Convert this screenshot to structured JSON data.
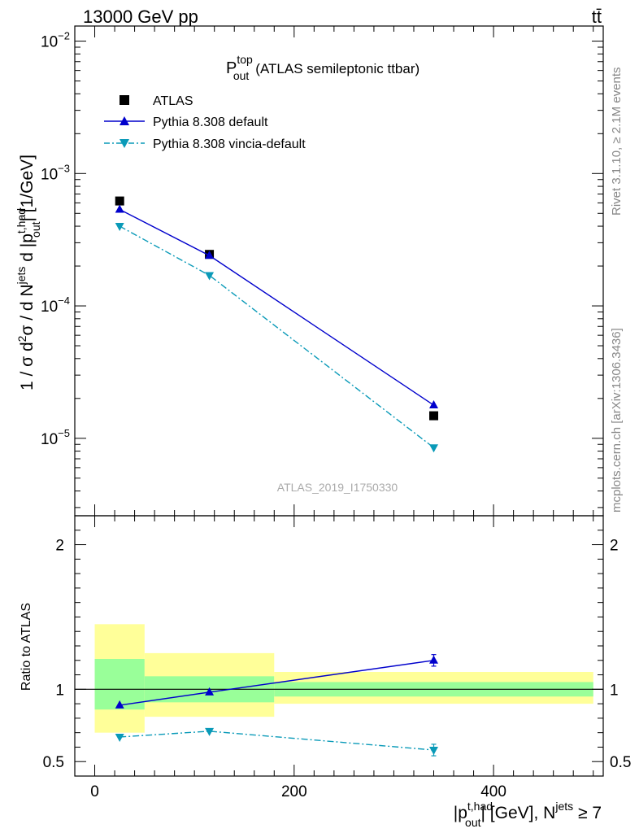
{
  "header": {
    "energy": "13000 GeV pp",
    "process": "tt̄"
  },
  "side_labels": {
    "rivet": "Rivet 3.1.10, ≥ 2.1M events",
    "source": "mcplots.cern.ch [arXiv:1306.3436]"
  },
  "analysis_id": "ATLAS_2019_I1750330",
  "chart_data": [
    {
      "type": "line",
      "panel": "main",
      "title": "(ATLAS semileptonic ttbar)",
      "title_math": {
        "base": "P",
        "sup": "top",
        "sub": "out"
      },
      "xlabel": "|p_out^{t,had}| [GeV], N^jets ≥ 7",
      "ylabel": "1 / σ d²σ / d N^jets d |p_out^{t,had}| [1/GeV]",
      "yscale": "log",
      "xlim": [
        -20,
        510
      ],
      "ylim": [
        2.6e-06,
        0.013
      ],
      "yticks": [
        {
          "value": 0.01,
          "exp": "−2"
        },
        {
          "value": 0.001,
          "exp": "−3"
        },
        {
          "value": 0.0001,
          "exp": "−4"
        },
        {
          "value": 1e-05,
          "exp": "−5"
        }
      ],
      "legend_position": "top-left",
      "series": [
        {
          "name": "ATLAS",
          "marker": "square",
          "color": "#000000",
          "x": [
            25,
            115,
            340
          ],
          "y": [
            0.00062,
            0.000245,
            1.48e-05
          ]
        },
        {
          "name": "Pythia 8.308 default",
          "marker": "triangle-up",
          "color": "#0000cc",
          "dash": "solid",
          "x": [
            25,
            115,
            340
          ],
          "y": [
            0.000535,
            0.00024,
            1.78e-05
          ]
        },
        {
          "name": "Pythia 8.308 vincia-default",
          "marker": "triangle-down",
          "color": "#0a9ab8",
          "dash": "dashdot",
          "x": [
            25,
            115,
            340
          ],
          "y": [
            0.0004,
            0.00017,
            8.5e-06
          ]
        }
      ]
    },
    {
      "type": "line",
      "panel": "ratio",
      "ylabel": "Ratio to ATLAS",
      "xlabel": "|p_out^{t,had}| [GeV], N^jets ≥ 7",
      "xlim": [
        -20,
        510
      ],
      "ylim": [
        0.4,
        2.2
      ],
      "xticks": [
        0,
        200,
        400
      ],
      "yticks": [
        0.5,
        1,
        2
      ],
      "reference": 1,
      "bands": [
        {
          "x0": 0,
          "x1": 50,
          "inner": [
            0.86,
            1.21
          ],
          "outer": [
            0.7,
            1.45
          ]
        },
        {
          "x0": 50,
          "x1": 180,
          "inner": [
            0.91,
            1.09
          ],
          "outer": [
            0.81,
            1.25
          ]
        },
        {
          "x0": 180,
          "x1": 500,
          "inner": [
            0.95,
            1.05
          ],
          "outer": [
            0.9,
            1.12
          ]
        }
      ],
      "band_colors": {
        "inner": "#99ff99",
        "outer": "#ffff99"
      },
      "series": [
        {
          "name": "Pythia 8.308 default",
          "marker": "triangle-up",
          "color": "#0000cc",
          "dash": "solid",
          "x": [
            25,
            115,
            340
          ],
          "y": [
            0.89,
            0.98,
            1.2
          ],
          "err": [
            0,
            0,
            0.04
          ]
        },
        {
          "name": "Pythia 8.308 vincia-default",
          "marker": "triangle-down",
          "color": "#0a9ab8",
          "dash": "dashdot",
          "x": [
            25,
            115,
            340
          ],
          "y": [
            0.67,
            0.71,
            0.58
          ],
          "err": [
            0,
            0,
            0.04
          ]
        }
      ]
    }
  ]
}
